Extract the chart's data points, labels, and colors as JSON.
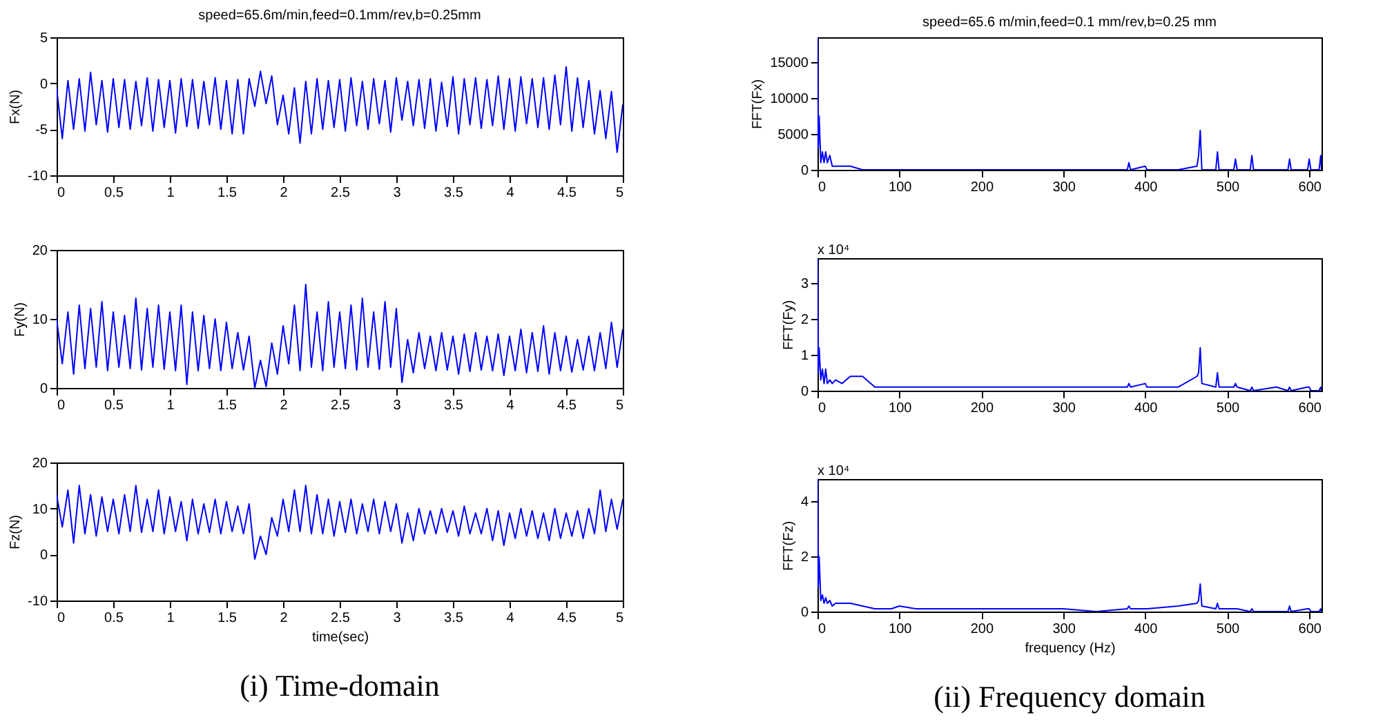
{
  "chart_data": [
    {
      "type": "line",
      "title": "speed=65.6m/min,feed=0.1mm/rev,b=0.25mm",
      "ylabel": "Fx(N)",
      "color": "#0000ff",
      "line_style": "solid",
      "marker": "none",
      "x": [
        0,
        0.05,
        0.1,
        0.15,
        0.2,
        0.25,
        0.3,
        0.35,
        0.4,
        0.45,
        0.5,
        0.55,
        0.6,
        0.65,
        0.7,
        0.75,
        0.8,
        0.85,
        0.9,
        0.95,
        1,
        1.05,
        1.1,
        1.15,
        1.2,
        1.25,
        1.3,
        1.35,
        1.4,
        1.45,
        1.5,
        1.55,
        1.6,
        1.65,
        1.7,
        1.75,
        1.8,
        1.85,
        1.9,
        1.95,
        2,
        2.05,
        2.1,
        2.15,
        2.2,
        2.25,
        2.3,
        2.35,
        2.4,
        2.45,
        2.5,
        2.55,
        2.6,
        2.65,
        2.7,
        2.75,
        2.8,
        2.85,
        2.9,
        2.95,
        3,
        3.05,
        3.1,
        3.15,
        3.2,
        3.25,
        3.3,
        3.35,
        3.4,
        3.45,
        3.5,
        3.55,
        3.6,
        3.65,
        3.7,
        3.75,
        3.8,
        3.85,
        3.9,
        3.95,
        4,
        4.05,
        4.1,
        4.15,
        4.2,
        4.25,
        4.3,
        4.35,
        4.4,
        4.45,
        4.5,
        4.55,
        4.6,
        4.65,
        4.7,
        4.75,
        4.8,
        4.85,
        4.9,
        4.95,
        5
      ],
      "values": [
        -0.5,
        -6,
        0.3,
        -5,
        0.5,
        -5.2,
        1.2,
        -4.5,
        0.3,
        -5.3,
        0.5,
        -4.8,
        0.4,
        -5,
        0.2,
        -4.6,
        0.6,
        -5.2,
        0.4,
        -4.8,
        0.3,
        -5.4,
        0.5,
        -4.7,
        0.4,
        -4.9,
        0.2,
        -4.5,
        0.6,
        -5,
        0.3,
        -5.5,
        0.4,
        -5.5,
        0.5,
        -2.5,
        1.3,
        -2.2,
        0.8,
        -4.5,
        -1.3,
        -5.5,
        -0.5,
        -6.5,
        0.2,
        -5.5,
        0.5,
        -5,
        0.3,
        -4.8,
        0.4,
        -5.2,
        0.6,
        -4.6,
        0.2,
        -5,
        0.5,
        -4.4,
        0.3,
        -5.3,
        0.6,
        -4,
        0.2,
        -4.6,
        0.4,
        -4.9,
        0.5,
        -5.2,
        0.1,
        -4.7,
        0.7,
        -5.5,
        0.5,
        -4.5,
        0.6,
        -4.9,
        0.4,
        -4.6,
        0.8,
        -5,
        0.5,
        -5.2,
        0.7,
        -4.4,
        0.5,
        -4.8,
        0.6,
        -5,
        0.9,
        -4.5,
        1.8,
        -5.2,
        0.6,
        -4.8,
        0.3,
        -5.5,
        -0.8,
        -6,
        -0.9,
        -7.5,
        -2.3
      ],
      "xlim": [
        0,
        5
      ],
      "xticks": [
        0,
        0.5,
        1,
        1.5,
        2,
        2.5,
        3,
        3.5,
        4,
        4.5,
        5
      ],
      "ylim": [
        -10,
        5
      ],
      "yticks": [
        -10,
        -5,
        0,
        5
      ]
    },
    {
      "type": "line",
      "ylabel": "Fy(N)",
      "color": "#0000ff",
      "line_style": "solid",
      "marker": "none",
      "x": [
        0,
        0.05,
        0.1,
        0.15,
        0.2,
        0.25,
        0.3,
        0.35,
        0.4,
        0.45,
        0.5,
        0.55,
        0.6,
        0.65,
        0.7,
        0.75,
        0.8,
        0.85,
        0.9,
        0.95,
        1,
        1.05,
        1.1,
        1.15,
        1.2,
        1.25,
        1.3,
        1.35,
        1.4,
        1.45,
        1.5,
        1.55,
        1.6,
        1.65,
        1.7,
        1.75,
        1.8,
        1.85,
        1.9,
        1.95,
        2,
        2.05,
        2.1,
        2.15,
        2.2,
        2.25,
        2.3,
        2.35,
        2.4,
        2.45,
        2.5,
        2.55,
        2.6,
        2.65,
        2.7,
        2.75,
        2.8,
        2.85,
        2.9,
        2.95,
        3,
        3.05,
        3.1,
        3.15,
        3.2,
        3.25,
        3.3,
        3.35,
        3.4,
        3.45,
        3.5,
        3.55,
        3.6,
        3.65,
        3.7,
        3.75,
        3.8,
        3.85,
        3.9,
        3.95,
        4,
        4.05,
        4.1,
        4.15,
        4.2,
        4.25,
        4.3,
        4.35,
        4.4,
        4.45,
        4.5,
        4.55,
        4.6,
        4.65,
        4.7,
        4.75,
        4.8,
        4.85,
        4.9,
        4.95,
        5
      ],
      "values": [
        10,
        3.5,
        11,
        2,
        12,
        2.8,
        11.5,
        3,
        12.5,
        2.5,
        11,
        3,
        10.5,
        2.8,
        13,
        2.6,
        11.5,
        3,
        12,
        2.7,
        11,
        2.5,
        12,
        0.5,
        11,
        2.5,
        10.5,
        2.8,
        10,
        2.5,
        9.5,
        2.8,
        8,
        2.6,
        7.5,
        0,
        4,
        0.2,
        6.5,
        2,
        9,
        3.5,
        12,
        2.5,
        15,
        3,
        11,
        2.5,
        12.5,
        3,
        11,
        2.8,
        12,
        2.6,
        13,
        3,
        11,
        2.7,
        12.5,
        3,
        11.5,
        0.8,
        7,
        2.2,
        8,
        2.8,
        7.5,
        2.5,
        8,
        2.6,
        7.5,
        2,
        7.8,
        2.4,
        8,
        2.6,
        7.5,
        2.5,
        7.8,
        1.8,
        7.5,
        2.5,
        8.5,
        2.2,
        8,
        2.4,
        9,
        2,
        8,
        2.5,
        7.5,
        2.3,
        7,
        2.6,
        7.5,
        2.5,
        8,
        2.8,
        9.5,
        3,
        8.5
      ],
      "xlim": [
        0,
        5
      ],
      "xticks": [
        0,
        0.5,
        1,
        1.5,
        2,
        2.5,
        3,
        3.5,
        4,
        4.5,
        5
      ],
      "ylim": [
        0,
        20
      ],
      "yticks": [
        0,
        10,
        20
      ]
    },
    {
      "type": "line",
      "ylabel": "Fz(N)",
      "xlabel": "time(sec)",
      "annotations": [
        "(i) Time-domain"
      ],
      "color": "#0000ff",
      "line_style": "solid",
      "marker": "none",
      "x": [
        0,
        0.05,
        0.1,
        0.15,
        0.2,
        0.25,
        0.3,
        0.35,
        0.4,
        0.45,
        0.5,
        0.55,
        0.6,
        0.65,
        0.7,
        0.75,
        0.8,
        0.85,
        0.9,
        0.95,
        1,
        1.05,
        1.1,
        1.15,
        1.2,
        1.25,
        1.3,
        1.35,
        1.4,
        1.45,
        1.5,
        1.55,
        1.6,
        1.65,
        1.7,
        1.75,
        1.8,
        1.85,
        1.9,
        1.95,
        2,
        2.05,
        2.1,
        2.15,
        2.2,
        2.25,
        2.3,
        2.35,
        2.4,
        2.45,
        2.5,
        2.55,
        2.6,
        2.65,
        2.7,
        2.75,
        2.8,
        2.85,
        2.9,
        2.95,
        3,
        3.05,
        3.1,
        3.15,
        3.2,
        3.25,
        3.3,
        3.35,
        3.4,
        3.45,
        3.5,
        3.55,
        3.6,
        3.65,
        3.7,
        3.75,
        3.8,
        3.85,
        3.9,
        3.95,
        4,
        4.05,
        4.1,
        4.15,
        4.2,
        4.25,
        4.3,
        4.35,
        4.4,
        4.45,
        4.5,
        4.55,
        4.6,
        4.65,
        4.7,
        4.75,
        4.8,
        4.85,
        4.9,
        4.95,
        5
      ],
      "values": [
        13,
        6,
        14,
        2.5,
        15,
        4.5,
        13,
        4,
        12.5,
        5,
        12,
        4.5,
        13,
        5,
        15,
        4.8,
        12,
        5,
        14,
        4.5,
        12.5,
        5,
        11.5,
        3,
        12,
        4.5,
        11,
        4.8,
        12,
        4.5,
        11.5,
        5,
        10.5,
        4.5,
        11,
        -1,
        4,
        0,
        8,
        4,
        12,
        5,
        14,
        5,
        15,
        4.5,
        13,
        4.5,
        12,
        4,
        11.5,
        4.8,
        12,
        4.5,
        11,
        5,
        12,
        4.5,
        11.5,
        5,
        11,
        2.5,
        9,
        3,
        10,
        4.5,
        9.5,
        4.5,
        10,
        4.8,
        9.5,
        4,
        10.5,
        4.5,
        9,
        4.5,
        10,
        3,
        9.5,
        2,
        9,
        3.5,
        10,
        4,
        9.5,
        3.5,
        9,
        3,
        10,
        3.5,
        9,
        4,
        9.5,
        3.5,
        10,
        4.5,
        14,
        5,
        12,
        5.5,
        12
      ],
      "xlim": [
        0,
        5
      ],
      "xticks": [
        0,
        0.5,
        1,
        1.5,
        2,
        2.5,
        3,
        3.5,
        4,
        4.5,
        5
      ],
      "ylim": [
        -10,
        20
      ],
      "yticks": [
        -10,
        0,
        10,
        20
      ]
    },
    {
      "type": "line",
      "title": "speed=65.6 m/min,feed=0.1 mm/rev,b=0.25 mm",
      "ylabel": "FFT(Fx)",
      "color": "#0000ff",
      "line_style": "solid",
      "marker": "none",
      "x": [
        0,
        1,
        2,
        4,
        6,
        8,
        10,
        12,
        15,
        18,
        22,
        30,
        40,
        55,
        70,
        90,
        100,
        120,
        160,
        200,
        240,
        300,
        340,
        378,
        380,
        382,
        400,
        402,
        440,
        463,
        465,
        467,
        469,
        486,
        488,
        490,
        508,
        510,
        512,
        528,
        530,
        532,
        560,
        574,
        576,
        578,
        598,
        600,
        602,
        612,
        614,
        615
      ],
      "values": [
        18500,
        3000,
        7500,
        1000,
        2500,
        1000,
        2500,
        1000,
        2000,
        500,
        500,
        500,
        500,
        0,
        0,
        0,
        0,
        0,
        0,
        0,
        0,
        0,
        0,
        0,
        1000,
        0,
        500,
        0,
        0,
        500,
        2000,
        5500,
        0,
        0,
        2500,
        0,
        0,
        1500,
        0,
        0,
        2000,
        0,
        0,
        0,
        1500,
        0,
        0,
        1500,
        0,
        0,
        2000,
        0
      ],
      "xlim": [
        0,
        615
      ],
      "xticks": [
        0,
        100,
        200,
        300,
        400,
        500,
        600
      ],
      "ylim": [
        0,
        18500
      ],
      "yticks": [
        0,
        5000,
        10000,
        15000
      ]
    },
    {
      "type": "line",
      "ylabel": "FFT(Fy)",
      "annotations": [
        "x 10⁴"
      ],
      "color": "#0000ff",
      "line_style": "solid",
      "marker": "none",
      "x": [
        0,
        1,
        2,
        4,
        6,
        8,
        10,
        12,
        15,
        18,
        22,
        30,
        40,
        55,
        70,
        90,
        100,
        120,
        160,
        200,
        240,
        300,
        340,
        378,
        380,
        382,
        400,
        402,
        440,
        463,
        465,
        467,
        469,
        486,
        488,
        490,
        508,
        510,
        512,
        528,
        530,
        532,
        560,
        574,
        576,
        578,
        598,
        600,
        602,
        612,
        614,
        615
      ],
      "values": [
        3.7,
        0.5,
        1.2,
        0.3,
        0.6,
        0.2,
        0.6,
        0.2,
        0.3,
        0.2,
        0.3,
        0.2,
        0.4,
        0.4,
        0.1,
        0.1,
        0.1,
        0.1,
        0.1,
        0.1,
        0.1,
        0.1,
        0.1,
        0.1,
        0.2,
        0.1,
        0.2,
        0.1,
        0.1,
        0.4,
        0.5,
        1.2,
        0.2,
        0.1,
        0.5,
        0.1,
        0.1,
        0.2,
        0.1,
        0,
        0.1,
        0,
        0.1,
        0,
        0.1,
        0,
        0.1,
        0.1,
        0,
        0,
        0.1,
        0
      ],
      "xlim": [
        0,
        615
      ],
      "xticks": [
        0,
        100,
        200,
        300,
        400,
        500,
        600
      ],
      "ylim": [
        0,
        3.7
      ],
      "yticks": [
        0,
        1,
        2,
        3
      ]
    },
    {
      "type": "line",
      "ylabel": "FFT(Fz)",
      "xlabel": "frequency (Hz)",
      "annotations": [
        "x 10⁴",
        "(ii) Frequency domain"
      ],
      "color": "#0000ff",
      "line_style": "solid",
      "marker": "none",
      "x": [
        0,
        1,
        2,
        4,
        6,
        8,
        10,
        12,
        15,
        18,
        22,
        30,
        40,
        55,
        70,
        90,
        100,
        120,
        160,
        200,
        240,
        300,
        340,
        378,
        380,
        382,
        400,
        402,
        440,
        463,
        465,
        467,
        469,
        486,
        488,
        490,
        508,
        510,
        512,
        528,
        530,
        532,
        560,
        574,
        576,
        578,
        598,
        600,
        602,
        612,
        614,
        615
      ],
      "values": [
        4.8,
        0.9,
        2,
        0.4,
        0.6,
        0.3,
        0.5,
        0.3,
        0.4,
        0.2,
        0.3,
        0.3,
        0.3,
        0.2,
        0.1,
        0.1,
        0.2,
        0.1,
        0.1,
        0.1,
        0.1,
        0.1,
        0,
        0.1,
        0.2,
        0.1,
        0.1,
        0.1,
        0.2,
        0.3,
        0.4,
        1,
        0.2,
        0.1,
        0.3,
        0.1,
        0.1,
        0.1,
        0.1,
        0,
        0.1,
        0,
        0,
        0,
        0.2,
        0,
        0.1,
        0.1,
        0,
        0,
        0.1,
        0
      ],
      "xlim": [
        0,
        615
      ],
      "xticks": [
        0,
        100,
        200,
        300,
        400,
        500,
        600
      ],
      "ylim": [
        0,
        4.8
      ],
      "yticks": [
        0,
        2,
        4
      ]
    }
  ]
}
